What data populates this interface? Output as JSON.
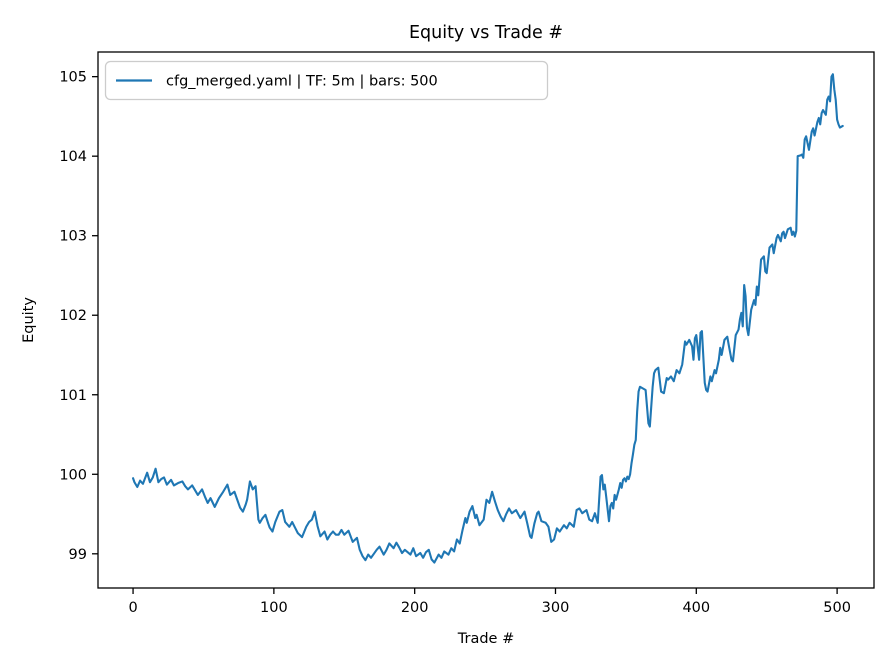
{
  "figure": {
    "background": "#ffffff"
  },
  "chart_data": {
    "type": "line",
    "title": "Equity vs Trade #",
    "xlabel": "Trade #",
    "ylabel": "Equity",
    "grid": false,
    "legend": {
      "position": "upper left",
      "entries": [
        {
          "label": "cfg_merged.yaml | TF: 5m | bars: 500",
          "color": "#1f77b4"
        }
      ]
    },
    "axis_color": "#000000",
    "spine_width": 1.3,
    "line_color": "#1f77b4",
    "line_width": 2.1,
    "x_ticks": [
      0,
      100,
      200,
      300,
      400,
      500
    ],
    "y_ticks": [
      99,
      100,
      101,
      102,
      103,
      104,
      105
    ],
    "xlim": [
      -24.9,
      526.2
    ],
    "ylim": [
      98.57,
      105.31
    ],
    "series": [
      {
        "name": "cfg_merged.yaml | TF: 5m | bars: 500",
        "points": [
          [
            0,
            99.95
          ],
          [
            1,
            99.9
          ],
          [
            3,
            99.84
          ],
          [
            5,
            99.92
          ],
          [
            7,
            99.88
          ],
          [
            10,
            100.02
          ],
          [
            12,
            99.9
          ],
          [
            14,
            99.96
          ],
          [
            16,
            100.07
          ],
          [
            18,
            99.9
          ],
          [
            20,
            99.94
          ],
          [
            22,
            99.96
          ],
          [
            24,
            99.87
          ],
          [
            27,
            99.93
          ],
          [
            29,
            99.86
          ],
          [
            32,
            99.89
          ],
          [
            35,
            99.91
          ],
          [
            37,
            99.85
          ],
          [
            39,
            99.81
          ],
          [
            42,
            99.86
          ],
          [
            44,
            99.8
          ],
          [
            46,
            99.74
          ],
          [
            49,
            99.81
          ],
          [
            51,
            99.72
          ],
          [
            53,
            99.64
          ],
          [
            55,
            99.7
          ],
          [
            58,
            99.59
          ],
          [
            61,
            99.7
          ],
          [
            64,
            99.78
          ],
          [
            67,
            99.87
          ],
          [
            69,
            99.74
          ],
          [
            72,
            99.78
          ],
          [
            74,
            99.68
          ],
          [
            76,
            99.58
          ],
          [
            78,
            99.53
          ],
          [
            80,
            99.62
          ],
          [
            81,
            99.68
          ],
          [
            83,
            99.91
          ],
          [
            85,
            99.81
          ],
          [
            87,
            99.85
          ],
          [
            89,
            99.43
          ],
          [
            90,
            99.39
          ],
          [
            92,
            99.45
          ],
          [
            94,
            99.49
          ],
          [
            96,
            99.38
          ],
          [
            97,
            99.33
          ],
          [
            99,
            99.28
          ],
          [
            101,
            99.4
          ],
          [
            104,
            99.53
          ],
          [
            106,
            99.55
          ],
          [
            108,
            99.4
          ],
          [
            110,
            99.36
          ],
          [
            111,
            99.34
          ],
          [
            113,
            99.4
          ],
          [
            115,
            99.33
          ],
          [
            117,
            99.26
          ],
          [
            120,
            99.21
          ],
          [
            123,
            99.34
          ],
          [
            125,
            99.4
          ],
          [
            127,
            99.43
          ],
          [
            129,
            99.53
          ],
          [
            131,
            99.35
          ],
          [
            133,
            99.22
          ],
          [
            136,
            99.28
          ],
          [
            138,
            99.18
          ],
          [
            140,
            99.24
          ],
          [
            142,
            99.28
          ],
          [
            144,
            99.24
          ],
          [
            146,
            99.24
          ],
          [
            148,
            99.3
          ],
          [
            150,
            99.24
          ],
          [
            153,
            99.29
          ],
          [
            156,
            99.15
          ],
          [
            159,
            99.2
          ],
          [
            161,
            99.05
          ],
          [
            163,
            98.97
          ],
          [
            165,
            98.92
          ],
          [
            167,
            98.99
          ],
          [
            169,
            98.95
          ],
          [
            171,
            99.0
          ],
          [
            173,
            99.05
          ],
          [
            175,
            99.09
          ],
          [
            178,
            98.99
          ],
          [
            180,
            99.05
          ],
          [
            182,
            99.13
          ],
          [
            185,
            99.07
          ],
          [
            187,
            99.14
          ],
          [
            189,
            99.08
          ],
          [
            191,
            99.01
          ],
          [
            193,
            99.05
          ],
          [
            195,
            99.02
          ],
          [
            197,
            98.99
          ],
          [
            199,
            99.07
          ],
          [
            201,
            98.97
          ],
          [
            204,
            99.01
          ],
          [
            206,
            98.95
          ],
          [
            208,
            99.02
          ],
          [
            210,
            99.05
          ],
          [
            212,
            98.93
          ],
          [
            214,
            98.89
          ],
          [
            217,
            98.99
          ],
          [
            219,
            98.95
          ],
          [
            221,
            99.03
          ],
          [
            224,
            98.99
          ],
          [
            226,
            99.07
          ],
          [
            228,
            99.03
          ],
          [
            230,
            99.18
          ],
          [
            232,
            99.13
          ],
          [
            234,
            99.3
          ],
          [
            236,
            99.45
          ],
          [
            237,
            99.39
          ],
          [
            239,
            99.53
          ],
          [
            241,
            99.6
          ],
          [
            243,
            99.45
          ],
          [
            244,
            99.49
          ],
          [
            246,
            99.36
          ],
          [
            249,
            99.43
          ],
          [
            251,
            99.68
          ],
          [
            253,
            99.64
          ],
          [
            255,
            99.78
          ],
          [
            257,
            99.66
          ],
          [
            259,
            99.55
          ],
          [
            261,
            99.47
          ],
          [
            263,
            99.41
          ],
          [
            265,
            99.5
          ],
          [
            267,
            99.57
          ],
          [
            269,
            99.51
          ],
          [
            272,
            99.55
          ],
          [
            275,
            99.45
          ],
          [
            278,
            99.53
          ],
          [
            280,
            99.38
          ],
          [
            282,
            99.22
          ],
          [
            283,
            99.2
          ],
          [
            285,
            99.38
          ],
          [
            287,
            99.51
          ],
          [
            288,
            99.53
          ],
          [
            290,
            99.41
          ],
          [
            293,
            99.39
          ],
          [
            295,
            99.34
          ],
          [
            297,
            99.15
          ],
          [
            299,
            99.18
          ],
          [
            301,
            99.32
          ],
          [
            303,
            99.28
          ],
          [
            306,
            99.36
          ],
          [
            308,
            99.32
          ],
          [
            310,
            99.39
          ],
          [
            313,
            99.34
          ],
          [
            315,
            99.55
          ],
          [
            317,
            99.57
          ],
          [
            319,
            99.51
          ],
          [
            322,
            99.55
          ],
          [
            324,
            99.43
          ],
          [
            326,
            99.41
          ],
          [
            328,
            99.51
          ],
          [
            330,
            99.39
          ],
          [
            332,
            99.97
          ],
          [
            333,
            99.99
          ],
          [
            334,
            99.81
          ],
          [
            335,
            99.87
          ],
          [
            336,
            99.72
          ],
          [
            338,
            99.41
          ],
          [
            339,
            99.6
          ],
          [
            340,
            99.64
          ],
          [
            341,
            99.57
          ],
          [
            342,
            99.74
          ],
          [
            343,
            99.68
          ],
          [
            345,
            99.81
          ],
          [
            346,
            99.89
          ],
          [
            347,
            99.83
          ],
          [
            348,
            99.93
          ],
          [
            349,
            99.95
          ],
          [
            350,
            99.91
          ],
          [
            351,
            99.97
          ],
          [
            352,
            99.94
          ],
          [
            353,
            100.0
          ],
          [
            354,
            100.14
          ],
          [
            355,
            100.25
          ],
          [
            356,
            100.37
          ],
          [
            357,
            100.43
          ],
          [
            358,
            100.79
          ],
          [
            359,
            101.04
          ],
          [
            360,
            101.1
          ],
          [
            362,
            101.08
          ],
          [
            364,
            101.06
          ],
          [
            366,
            100.64
          ],
          [
            367,
            100.6
          ],
          [
            369,
            101.1
          ],
          [
            370,
            101.27
          ],
          [
            371,
            101.31
          ],
          [
            373,
            101.34
          ],
          [
            375,
            101.04
          ],
          [
            377,
            101.02
          ],
          [
            379,
            101.21
          ],
          [
            380,
            101.19
          ],
          [
            382,
            101.23
          ],
          [
            384,
            101.17
          ],
          [
            386,
            101.31
          ],
          [
            388,
            101.27
          ],
          [
            390,
            101.38
          ],
          [
            392,
            101.67
          ],
          [
            393,
            101.63
          ],
          [
            395,
            101.69
          ],
          [
            397,
            101.61
          ],
          [
            398,
            101.44
          ],
          [
            399,
            101.71
          ],
          [
            400,
            101.75
          ],
          [
            402,
            101.44
          ],
          [
            403,
            101.78
          ],
          [
            404,
            101.8
          ],
          [
            406,
            101.15
          ],
          [
            407,
            101.06
          ],
          [
            408,
            101.04
          ],
          [
            410,
            101.23
          ],
          [
            411,
            101.17
          ],
          [
            413,
            101.31
          ],
          [
            414,
            101.27
          ],
          [
            416,
            101.44
          ],
          [
            417,
            101.59
          ],
          [
            418,
            101.5
          ],
          [
            420,
            101.69
          ],
          [
            422,
            101.73
          ],
          [
            423,
            101.63
          ],
          [
            425,
            101.44
          ],
          [
            426,
            101.42
          ],
          [
            428,
            101.75
          ],
          [
            430,
            101.82
          ],
          [
            431,
            101.95
          ],
          [
            432,
            102.03
          ],
          [
            433,
            101.86
          ],
          [
            434,
            102.38
          ],
          [
            435,
            102.24
          ],
          [
            436,
            101.84
          ],
          [
            437,
            101.75
          ],
          [
            439,
            102.07
          ],
          [
            441,
            102.19
          ],
          [
            442,
            102.13
          ],
          [
            443,
            102.36
          ],
          [
            444,
            102.25
          ],
          [
            446,
            102.7
          ],
          [
            448,
            102.74
          ],
          [
            449,
            102.55
          ],
          [
            450,
            102.53
          ],
          [
            452,
            102.85
          ],
          [
            454,
            102.89
          ],
          [
            455,
            102.78
          ],
          [
            457,
            102.97
          ],
          [
            458,
            103.01
          ],
          [
            460,
            102.93
          ],
          [
            461,
            103.03
          ],
          [
            462,
            103.05
          ],
          [
            463,
            102.97
          ],
          [
            465,
            103.08
          ],
          [
            467,
            103.1
          ],
          [
            468,
            103.01
          ],
          [
            469,
            103.05
          ],
          [
            470,
            102.99
          ],
          [
            471,
            103.06
          ],
          [
            472,
            104.0
          ],
          [
            474,
            104.01
          ],
          [
            475,
            104.02
          ],
          [
            476,
            103.98
          ],
          [
            477,
            104.21
          ],
          [
            478,
            104.25
          ],
          [
            480,
            104.08
          ],
          [
            482,
            104.31
          ],
          [
            483,
            104.35
          ],
          [
            484,
            104.26
          ],
          [
            486,
            104.43
          ],
          [
            487,
            104.48
          ],
          [
            488,
            104.4
          ],
          [
            489,
            104.54
          ],
          [
            490,
            104.58
          ],
          [
            492,
            104.52
          ],
          [
            493,
            104.71
          ],
          [
            494,
            104.75
          ],
          [
            495,
            104.69
          ],
          [
            496,
            105.0
          ],
          [
            497,
            105.03
          ],
          [
            498,
            104.84
          ],
          [
            499,
            104.71
          ],
          [
            500,
            104.46
          ],
          [
            501,
            104.4
          ],
          [
            502,
            104.36
          ],
          [
            504,
            104.38
          ]
        ]
      }
    ]
  }
}
